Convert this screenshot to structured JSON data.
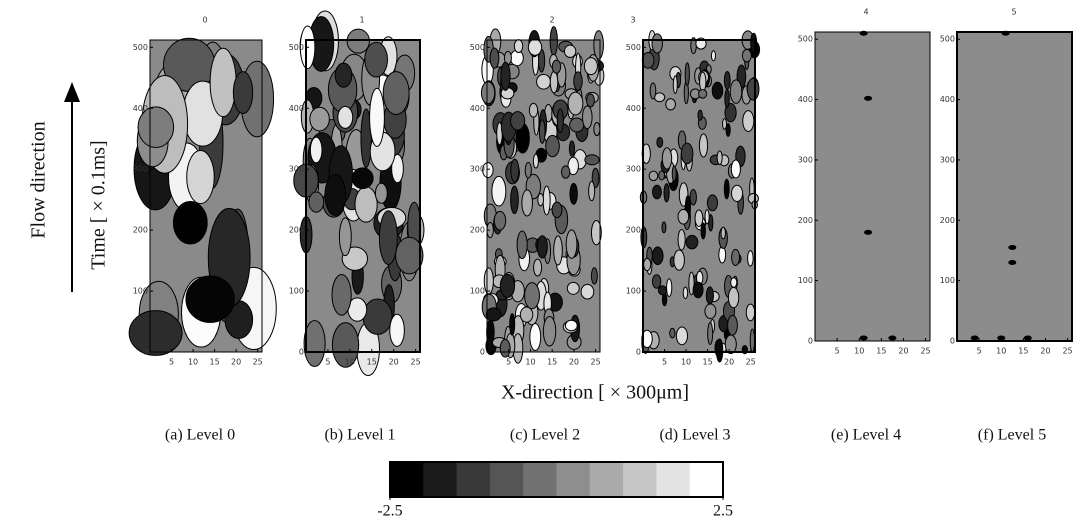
{
  "chart_data": [
    {
      "type": "contour",
      "title": "0",
      "caption": "(a) Level 0",
      "xlim": [
        0,
        26
      ],
      "ylim": [
        0,
        512
      ],
      "xticks": [
        5,
        10,
        15,
        20,
        25
      ],
      "yticks": [
        0,
        100,
        200,
        300,
        400,
        500
      ]
    },
    {
      "type": "contour",
      "title": "1",
      "caption": "(b) Level 1",
      "xlim": [
        0,
        26
      ],
      "ylim": [
        0,
        512
      ],
      "xticks": [
        5,
        10,
        15,
        20,
        25
      ],
      "yticks": [
        0,
        100,
        200,
        300,
        400,
        500
      ]
    },
    {
      "type": "contour",
      "title": "2",
      "caption": "(c) Level 2",
      "xlim": [
        0,
        26
      ],
      "ylim": [
        0,
        512
      ],
      "xticks": [
        5,
        10,
        15,
        20,
        25
      ],
      "yticks": [
        0,
        100,
        200,
        300,
        400,
        500
      ]
    },
    {
      "type": "contour",
      "title": "3",
      "caption": "(d) Level 3",
      "xlim": [
        0,
        26
      ],
      "ylim": [
        0,
        512
      ],
      "xticks": [
        5,
        10,
        15,
        20,
        25
      ],
      "yticks": [
        0,
        100,
        200,
        300,
        400,
        500
      ]
    },
    {
      "type": "contour",
      "title": "4",
      "caption": "(e) Level 4",
      "xlim": [
        0,
        26
      ],
      "ylim": [
        0,
        512
      ],
      "xticks": [
        5,
        10,
        15,
        20,
        25
      ],
      "yticks": [
        0,
        100,
        200,
        300,
        400,
        500
      ]
    },
    {
      "type": "contour",
      "title": "5",
      "caption": "(f) Level 5",
      "xlim": [
        0,
        26
      ],
      "ylim": [
        0,
        512
      ],
      "xticks": [
        5,
        10,
        15,
        20,
        25
      ],
      "yticks": [
        0,
        100,
        200,
        300,
        400,
        500
      ]
    }
  ],
  "figure": {
    "x_label": "X-direction  [ × 300μm]",
    "y_label": "Time  [ × 0.1ms]",
    "flow_label": "Flow  direction"
  },
  "colorbar": {
    "lim": [
      -2.5,
      2.5
    ],
    "ticks": [
      -2.5,
      2.5
    ]
  }
}
